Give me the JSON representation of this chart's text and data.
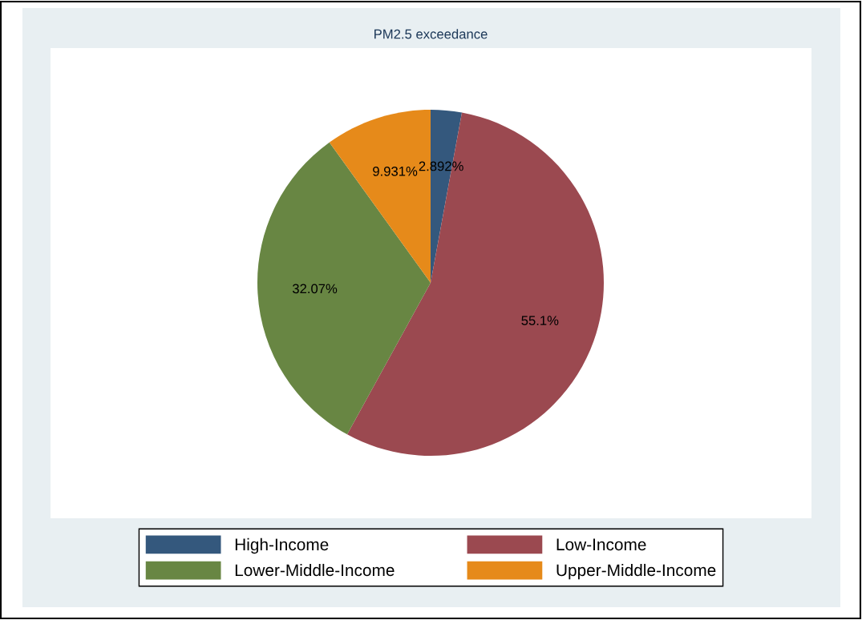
{
  "chart_data": {
    "type": "pie",
    "title": "PM2.5 exceedance",
    "categories": [
      "High-Income",
      "Low-Income",
      "Lower-Middle-Income",
      "Upper-Middle-Income"
    ],
    "values": [
      2.892,
      55.1,
      32.07,
      9.931
    ],
    "colors": [
      "#34587d",
      "#9b4950",
      "#688643",
      "#e68a1a"
    ],
    "value_labels": [
      "2.892%",
      "55.1%",
      "32.07%",
      "9.931%"
    ],
    "legend": "bottom"
  }
}
